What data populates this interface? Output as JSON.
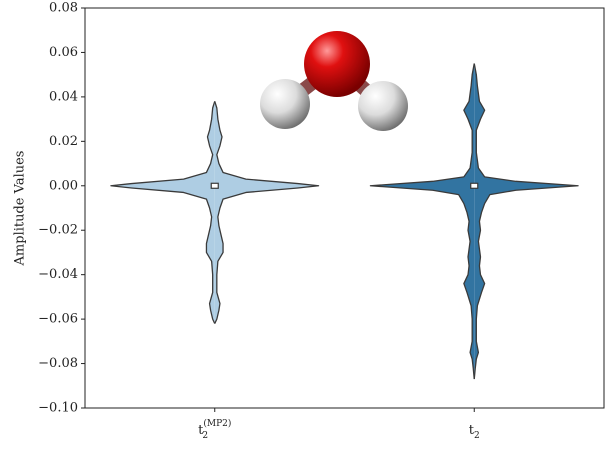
{
  "chart_data": {
    "type": "violin",
    "ylabel": "Amplitude Values",
    "categories": [
      {
        "main": "t",
        "sub": "2",
        "sup": "(MP2)"
      },
      {
        "main": "t",
        "sub": "2"
      }
    ],
    "ylim": [
      -0.1,
      0.08
    ],
    "yticks": [
      {
        "value": -0.1,
        "label": "−0.10"
      },
      {
        "value": -0.08,
        "label": "−0.08"
      },
      {
        "value": -0.06,
        "label": "−0.06"
      },
      {
        "value": -0.04,
        "label": "−0.04"
      },
      {
        "value": -0.02,
        "label": "−0.02"
      },
      {
        "value": 0,
        "label": "0.00"
      },
      0.02,
      0.04,
      0.06,
      0.08
    ],
    "series": [
      {
        "color": "#aecde3",
        "median": 0,
        "y": [
          0.038,
          0.035,
          0.03,
          0.025,
          0.022,
          0.018,
          0.014,
          0.01,
          0.006,
          0.003,
          0.001,
          0,
          -0.001,
          -0.003,
          -0.006,
          -0.01,
          -0.014,
          -0.018,
          -0.022,
          -0.026,
          -0.03,
          -0.034,
          -0.04,
          -0.048,
          -0.053,
          -0.056,
          -0.06,
          -0.062
        ],
        "density": [
          0,
          0.02,
          0.03,
          0.05,
          0.07,
          0.05,
          0.02,
          0.04,
          0.08,
          0.3,
          0.8,
          1,
          0.8,
          0.3,
          0.08,
          0.05,
          0.03,
          0.04,
          0.06,
          0.08,
          0.08,
          0.03,
          0.02,
          0.02,
          0.05,
          0.04,
          0.02,
          0
        ]
      },
      {
        "color": "#3274a1",
        "median": 0,
        "y": [
          0.055,
          0.05,
          0.045,
          0.038,
          0.034,
          0.03,
          0.025,
          0.015,
          0.008,
          0.004,
          0.002,
          0,
          -0.002,
          -0.004,
          -0.008,
          -0.012,
          -0.016,
          -0.02,
          -0.025,
          -0.032,
          -0.036,
          -0.04,
          -0.044,
          -0.048,
          -0.054,
          -0.06,
          -0.07,
          -0.075,
          -0.078,
          -0.082,
          -0.087
        ],
        "density": [
          0,
          0.02,
          0.03,
          0.05,
          0.1,
          0.06,
          0.02,
          0.02,
          0.04,
          0.1,
          0.4,
          1,
          0.4,
          0.15,
          0.1,
          0.07,
          0.05,
          0.06,
          0.04,
          0.06,
          0.05,
          0.06,
          0.1,
          0.07,
          0.03,
          0.02,
          0.02,
          0.04,
          0.02,
          0.01,
          0
        ]
      }
    ]
  }
}
